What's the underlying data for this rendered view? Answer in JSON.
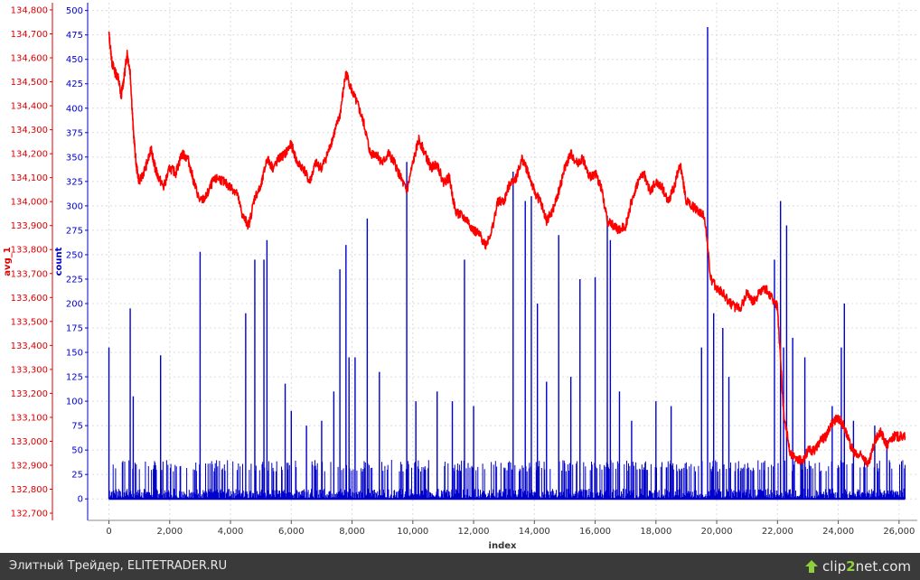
{
  "chart_data": {
    "type": "line",
    "xlabel": "index",
    "xlim": [
      -700,
      26600
    ],
    "x_ticks": [
      0,
      2000,
      4000,
      6000,
      8000,
      10000,
      12000,
      14000,
      16000,
      18000,
      20000,
      22000,
      24000,
      26000
    ],
    "x_tick_labels": [
      "0",
      "2,000",
      "4,000",
      "6,000",
      "8,000",
      "10,000",
      "12,000",
      "14,000",
      "16,000",
      "18,000",
      "20,000",
      "22,000",
      "24,000",
      "26,000"
    ],
    "grid": true,
    "y_axes": {
      "left": {
        "label": "avg_1",
        "color": "#dd0000",
        "lim": [
          132670,
          134830
        ],
        "ticks": [
          132700,
          132800,
          132900,
          133000,
          133100,
          133200,
          133300,
          133400,
          133500,
          133600,
          133700,
          133800,
          133900,
          134000,
          134100,
          134200,
          134300,
          134400,
          134500,
          134600,
          134700,
          134800
        ],
        "tick_labels": [
          "132,700",
          "132,800",
          "132,900",
          "133,000",
          "133,100",
          "133,200",
          "133,300",
          "133,400",
          "133,500",
          "133,600",
          "133,700",
          "133,800",
          "133,900",
          "134,000",
          "134,100",
          "134,200",
          "134,300",
          "134,400",
          "134,500",
          "134,600",
          "134,700",
          "134,800"
        ]
      },
      "right": {
        "label": "count",
        "color": "#0000cc",
        "lim": [
          -22,
          508
        ],
        "ticks": [
          0,
          25,
          50,
          75,
          100,
          125,
          150,
          175,
          200,
          225,
          250,
          275,
          300,
          325,
          350,
          375,
          400,
          425,
          450,
          475,
          500
        ],
        "tick_labels": [
          "0",
          "25",
          "50",
          "75",
          "100",
          "125",
          "150",
          "175",
          "200",
          "225",
          "250",
          "275",
          "300",
          "325",
          "350",
          "375",
          "400",
          "425",
          "450",
          "475",
          "500"
        ]
      }
    },
    "series": [
      {
        "axis": "avg_1",
        "color": "#ff0000",
        "points": [
          [
            0,
            134700
          ],
          [
            100,
            134580
          ],
          [
            200,
            134540
          ],
          [
            300,
            134520
          ],
          [
            400,
            134440
          ],
          [
            500,
            134520
          ],
          [
            600,
            134620
          ],
          [
            700,
            134540
          ],
          [
            800,
            134300
          ],
          [
            900,
            134150
          ],
          [
            1000,
            134080
          ],
          [
            1200,
            134140
          ],
          [
            1400,
            134220
          ],
          [
            1500,
            134150
          ],
          [
            1600,
            134110
          ],
          [
            1800,
            134060
          ],
          [
            2000,
            134140
          ],
          [
            2200,
            134120
          ],
          [
            2400,
            134200
          ],
          [
            2600,
            134180
          ],
          [
            2800,
            134080
          ],
          [
            3000,
            134000
          ],
          [
            3200,
            134020
          ],
          [
            3400,
            134080
          ],
          [
            3600,
            134100
          ],
          [
            3800,
            134080
          ],
          [
            4000,
            134060
          ],
          [
            4200,
            134040
          ],
          [
            4400,
            133940
          ],
          [
            4600,
            133900
          ],
          [
            4800,
            134020
          ],
          [
            5000,
            134060
          ],
          [
            5200,
            134180
          ],
          [
            5400,
            134140
          ],
          [
            5600,
            134180
          ],
          [
            5800,
            134200
          ],
          [
            6000,
            134240
          ],
          [
            6200,
            134160
          ],
          [
            6400,
            134140
          ],
          [
            6600,
            134080
          ],
          [
            6800,
            134160
          ],
          [
            7000,
            134140
          ],
          [
            7200,
            134200
          ],
          [
            7400,
            134280
          ],
          [
            7600,
            134360
          ],
          [
            7800,
            134540
          ],
          [
            8000,
            134460
          ],
          [
            8200,
            134400
          ],
          [
            8400,
            134320
          ],
          [
            8600,
            134200
          ],
          [
            8800,
            134200
          ],
          [
            9000,
            134160
          ],
          [
            9200,
            134200
          ],
          [
            9400,
            134160
          ],
          [
            9600,
            134100
          ],
          [
            9800,
            134040
          ],
          [
            10000,
            134160
          ],
          [
            10200,
            134260
          ],
          [
            10400,
            134200
          ],
          [
            10600,
            134140
          ],
          [
            10800,
            134160
          ],
          [
            11000,
            134080
          ],
          [
            11200,
            134100
          ],
          [
            11400,
            133960
          ],
          [
            11600,
            133940
          ],
          [
            11800,
            133920
          ],
          [
            12000,
            133880
          ],
          [
            12200,
            133860
          ],
          [
            12400,
            133820
          ],
          [
            12600,
            133880
          ],
          [
            12800,
            134000
          ],
          [
            13000,
            134000
          ],
          [
            13200,
            134080
          ],
          [
            13400,
            134100
          ],
          [
            13600,
            134180
          ],
          [
            13800,
            134120
          ],
          [
            14000,
            134040
          ],
          [
            14200,
            134000
          ],
          [
            14400,
            133920
          ],
          [
            14600,
            133960
          ],
          [
            14800,
            134040
          ],
          [
            15000,
            134140
          ],
          [
            15200,
            134200
          ],
          [
            15400,
            134160
          ],
          [
            15600,
            134180
          ],
          [
            15800,
            134100
          ],
          [
            16000,
            134120
          ],
          [
            16200,
            134060
          ],
          [
            16400,
            133920
          ],
          [
            16600,
            133900
          ],
          [
            16800,
            133880
          ],
          [
            17000,
            133900
          ],
          [
            17200,
            134000
          ],
          [
            17400,
            134080
          ],
          [
            17600,
            134120
          ],
          [
            17800,
            134040
          ],
          [
            18000,
            134080
          ],
          [
            18200,
            134060
          ],
          [
            18400,
            134000
          ],
          [
            18600,
            134060
          ],
          [
            18800,
            134160
          ],
          [
            19000,
            134000
          ],
          [
            19200,
            133980
          ],
          [
            19400,
            133960
          ],
          [
            19600,
            133940
          ],
          [
            19800,
            133680
          ],
          [
            20000,
            133640
          ],
          [
            20200,
            133620
          ],
          [
            20400,
            133580
          ],
          [
            20600,
            133560
          ],
          [
            20800,
            133560
          ],
          [
            21000,
            133620
          ],
          [
            21200,
            133580
          ],
          [
            21400,
            133620
          ],
          [
            21600,
            133640
          ],
          [
            21800,
            133600
          ],
          [
            22000,
            133560
          ],
          [
            22200,
            133120
          ],
          [
            22400,
            132960
          ],
          [
            22600,
            132920
          ],
          [
            22800,
            132920
          ],
          [
            23000,
            132960
          ],
          [
            23200,
            132960
          ],
          [
            23400,
            133000
          ],
          [
            23600,
            133020
          ],
          [
            23800,
            133080
          ],
          [
            24000,
            133100
          ],
          [
            24200,
            133060
          ],
          [
            24400,
            132980
          ],
          [
            24600,
            132940
          ],
          [
            24800,
            132940
          ],
          [
            25000,
            132900
          ],
          [
            25200,
            133000
          ],
          [
            25400,
            133040
          ],
          [
            25600,
            132980
          ],
          [
            25800,
            133020
          ],
          [
            26000,
            133020
          ],
          [
            26200,
            133020
          ]
        ]
      },
      {
        "axis": "count",
        "color": "#0000cc",
        "spikes": [
          [
            0,
            155
          ],
          [
            700,
            195
          ],
          [
            800,
            105
          ],
          [
            1700,
            147
          ],
          [
            3000,
            253
          ],
          [
            4500,
            190
          ],
          [
            4800,
            245
          ],
          [
            5100,
            245
          ],
          [
            5200,
            265
          ],
          [
            5800,
            118
          ],
          [
            6000,
            90
          ],
          [
            6500,
            75
          ],
          [
            7000,
            80
          ],
          [
            7400,
            110
          ],
          [
            7600,
            235
          ],
          [
            7800,
            260
          ],
          [
            7900,
            145
          ],
          [
            8100,
            145
          ],
          [
            8500,
            287
          ],
          [
            8900,
            130
          ],
          [
            9800,
            345
          ],
          [
            10100,
            100
          ],
          [
            10800,
            110
          ],
          [
            11300,
            100
          ],
          [
            11700,
            245
          ],
          [
            12000,
            95
          ],
          [
            13300,
            335
          ],
          [
            13700,
            305
          ],
          [
            13900,
            310
          ],
          [
            14100,
            200
          ],
          [
            14400,
            120
          ],
          [
            14800,
            270
          ],
          [
            15200,
            125
          ],
          [
            15500,
            225
          ],
          [
            16000,
            227
          ],
          [
            16400,
            290
          ],
          [
            16500,
            265
          ],
          [
            16800,
            110
          ],
          [
            17200,
            80
          ],
          [
            18000,
            100
          ],
          [
            18500,
            95
          ],
          [
            19500,
            155
          ],
          [
            19700,
            483
          ],
          [
            19900,
            190
          ],
          [
            20200,
            175
          ],
          [
            20400,
            125
          ],
          [
            21900,
            245
          ],
          [
            22100,
            305
          ],
          [
            22200,
            155
          ],
          [
            22300,
            280
          ],
          [
            22500,
            165
          ],
          [
            22900,
            145
          ],
          [
            23800,
            95
          ],
          [
            24100,
            155
          ],
          [
            24200,
            200
          ],
          [
            24500,
            80
          ],
          [
            25200,
            75
          ],
          [
            25600,
            60
          ]
        ],
        "baseline_noise_max": 40
      }
    ]
  },
  "footer": {
    "caption": "Элитный Трейдер, ELITETRADER.RU",
    "logo_left": "clip",
    "logo_accent": "2",
    "logo_right": "net.com"
  }
}
